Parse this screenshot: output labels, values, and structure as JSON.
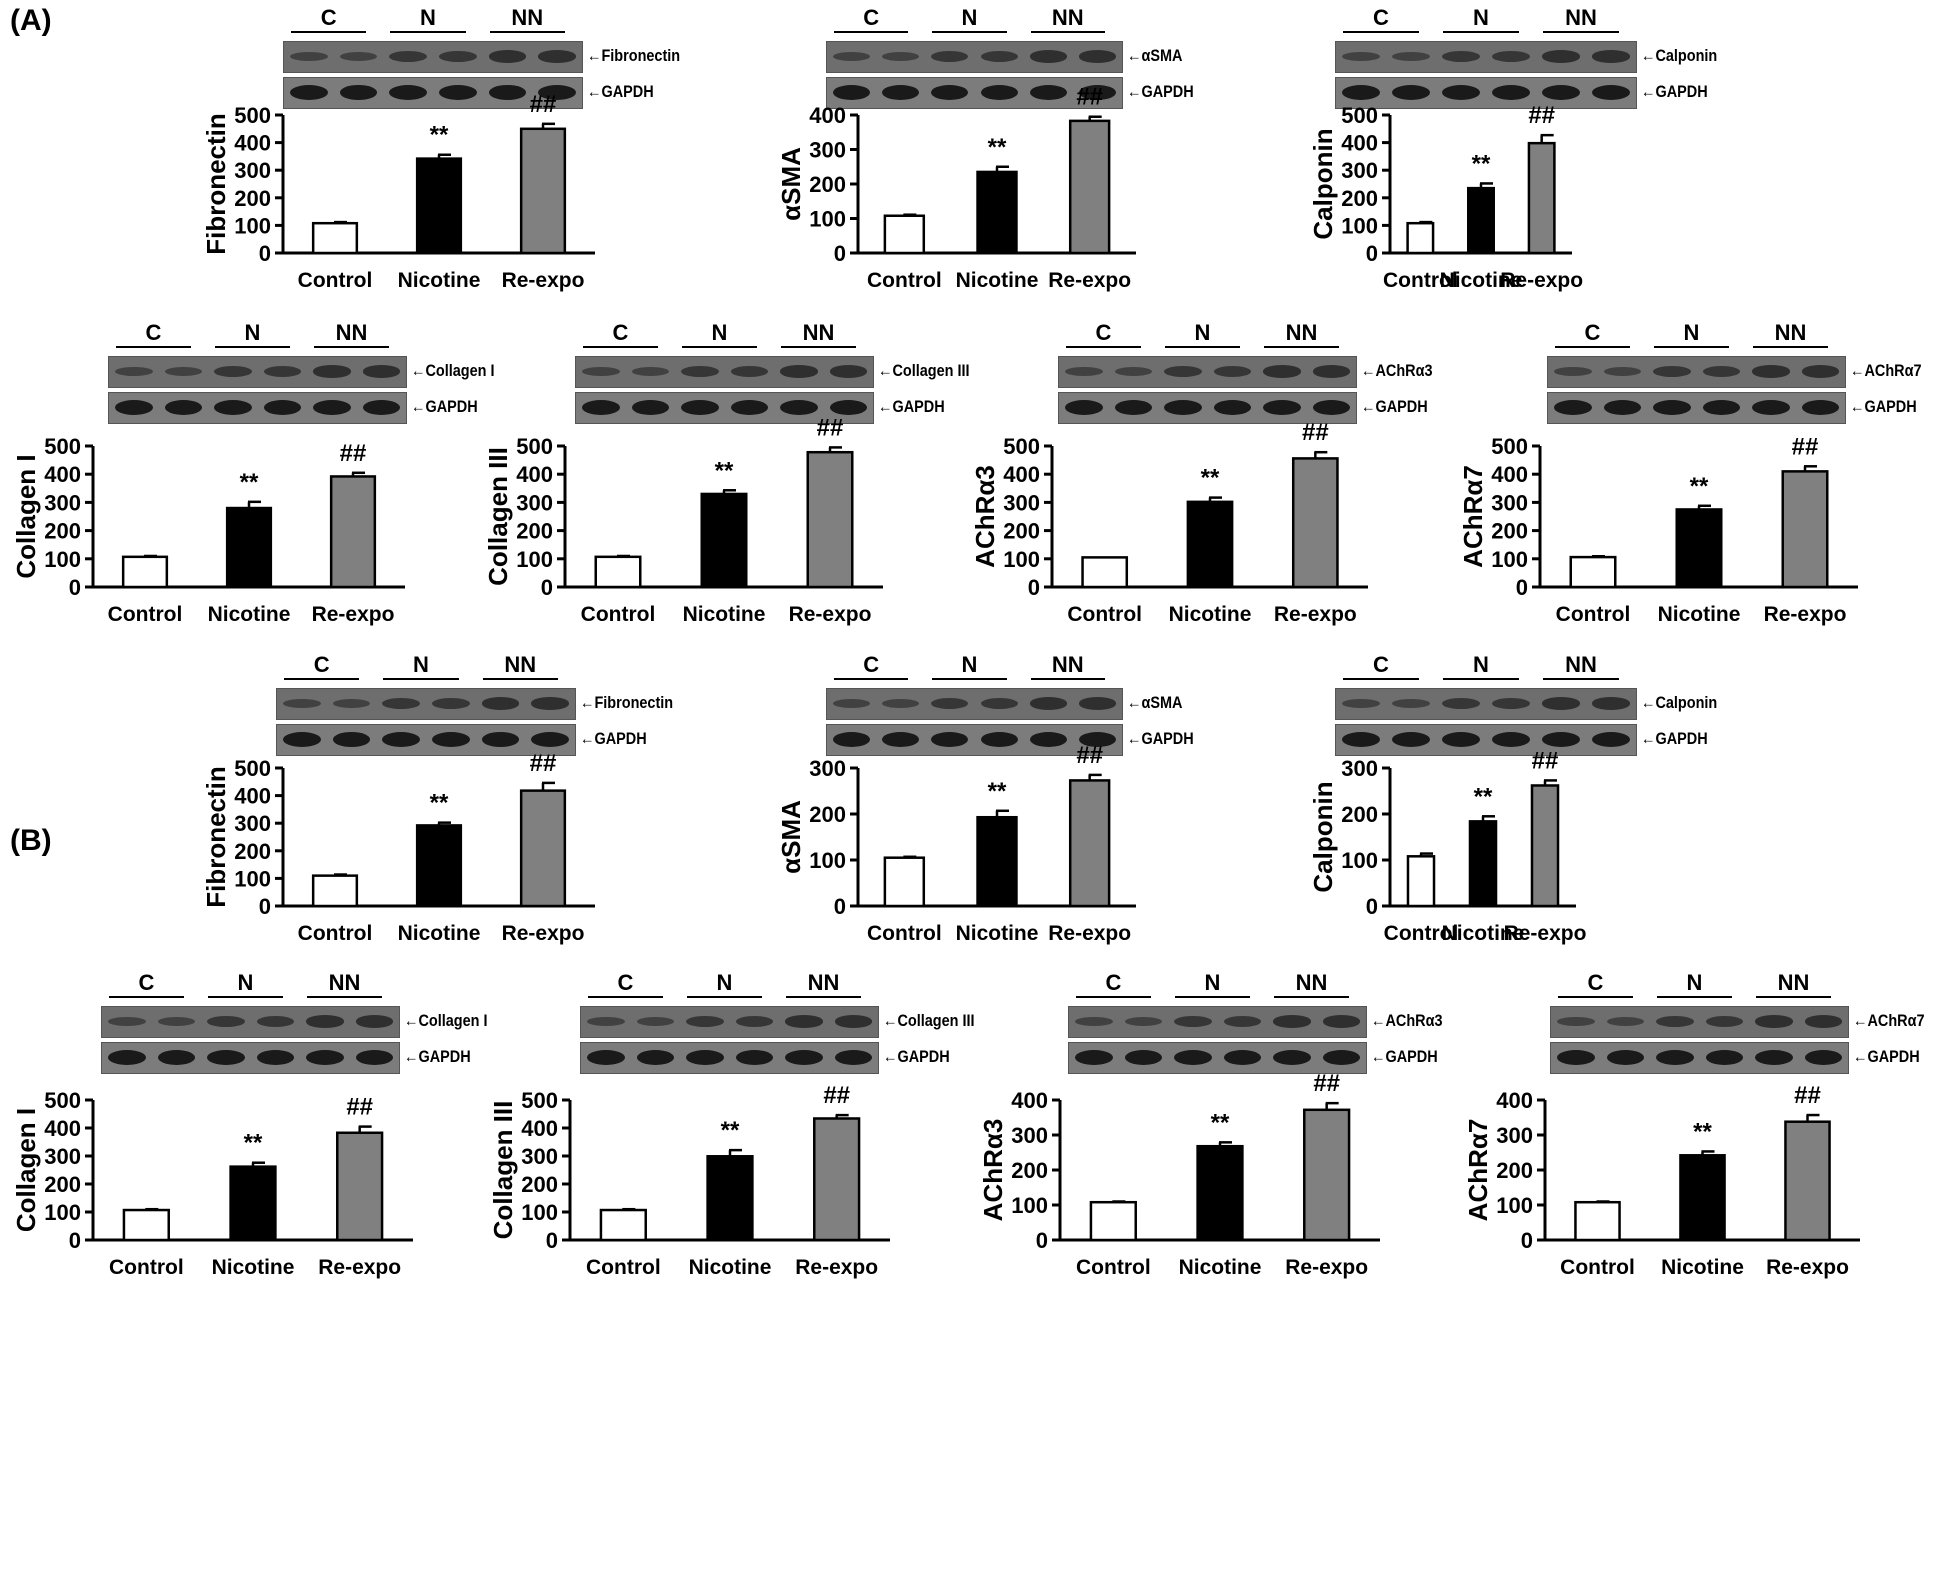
{
  "figure": {
    "sections": [
      {
        "label": "(A)"
      },
      {
        "label": "(B)"
      }
    ],
    "blot_groups": [
      "C",
      "N",
      "NN"
    ],
    "loading_control": "GAPDH",
    "categories": [
      "Control",
      "Nicotine",
      "Re-expo"
    ],
    "bar_colors": {
      "Control": "#ffffff",
      "Nicotine": "#000000",
      "Re-expo": "#808080"
    },
    "significance": {
      "Nicotine": "**",
      "Re-expo": "##"
    }
  },
  "chart_data": [
    {
      "id": "A-fibronectin",
      "section": "(A)",
      "type": "bar",
      "title": "",
      "protein": "Fibronectin",
      "ylabel": "Fibronectin",
      "xlabel": "",
      "categories": [
        "Control",
        "Nicotine",
        "Re-expo"
      ],
      "values": [
        108,
        342,
        450
      ],
      "errors": [
        4,
        14,
        18
      ],
      "annotations": [
        "",
        "**",
        "##"
      ],
      "ylim": [
        0,
        500
      ],
      "yticks": [
        0,
        100,
        200,
        300,
        400,
        500
      ],
      "grid": false,
      "legend": "none"
    },
    {
      "id": "A-asma",
      "section": "(A)",
      "type": "bar",
      "title": "",
      "protein": "αSMA",
      "ylabel": "αSMA",
      "xlabel": "",
      "categories": [
        "Control",
        "Nicotine",
        "Re-expo"
      ],
      "values": [
        108,
        235,
        383
      ],
      "errors": [
        3,
        15,
        12
      ],
      "annotations": [
        "",
        "**",
        "##"
      ],
      "ylim": [
        0,
        400
      ],
      "yticks": [
        0,
        100,
        200,
        300,
        400
      ],
      "grid": false,
      "legend": "none"
    },
    {
      "id": "A-calponin",
      "section": "(A)",
      "type": "bar",
      "title": "",
      "protein": "Calponin",
      "ylabel": "Calponin",
      "xlabel": "",
      "categories": [
        "Control",
        "Nicotine",
        "Re-expo"
      ],
      "values": [
        108,
        235,
        398
      ],
      "errors": [
        4,
        17,
        29
      ],
      "annotations": [
        "",
        "**",
        "##"
      ],
      "ylim": [
        0,
        500
      ],
      "yticks": [
        0,
        100,
        200,
        300,
        400,
        500
      ],
      "grid": false,
      "legend": "none"
    },
    {
      "id": "A-collagen1",
      "section": "(A)",
      "type": "bar",
      "title": "",
      "protein": "Collagen I",
      "ylabel": "Collagen I",
      "xlabel": "",
      "categories": [
        "Control",
        "Nicotine",
        "Re-expo"
      ],
      "values": [
        107,
        280,
        392
      ],
      "errors": [
        3,
        22,
        13
      ],
      "annotations": [
        "",
        "**",
        "##"
      ],
      "ylim": [
        0,
        500
      ],
      "yticks": [
        0,
        100,
        200,
        300,
        400,
        500
      ],
      "grid": false,
      "legend": "none"
    },
    {
      "id": "A-collagen3",
      "section": "(A)",
      "type": "bar",
      "title": "",
      "protein": "Collagen III",
      "ylabel": "Collagen III",
      "xlabel": "",
      "categories": [
        "Control",
        "Nicotine",
        "Re-expo"
      ],
      "values": [
        107,
        330,
        478
      ],
      "errors": [
        3,
        13,
        17
      ],
      "annotations": [
        "",
        "**",
        "##"
      ],
      "ylim": [
        0,
        500
      ],
      "yticks": [
        0,
        100,
        200,
        300,
        400,
        500
      ],
      "grid": false,
      "legend": "none"
    },
    {
      "id": "A-achra3",
      "section": "(A)",
      "type": "bar",
      "title": "",
      "protein": "AChRα3",
      "ylabel": "AChRα3",
      "xlabel": "",
      "categories": [
        "Control",
        "Nicotine",
        "Re-expo"
      ],
      "values": [
        105,
        302,
        456
      ],
      "errors": [
        0,
        15,
        22
      ],
      "annotations": [
        "",
        "**",
        "##"
      ],
      "ylim": [
        0,
        500
      ],
      "yticks": [
        0,
        100,
        200,
        300,
        400,
        500
      ],
      "grid": false,
      "legend": "none"
    },
    {
      "id": "A-achra7",
      "section": "(A)",
      "type": "bar",
      "title": "",
      "protein": "AChRα7",
      "ylabel": "AChRα7",
      "xlabel": "",
      "categories": [
        "Control",
        "Nicotine",
        "Re-expo"
      ],
      "values": [
        106,
        275,
        410
      ],
      "errors": [
        3,
        13,
        18
      ],
      "annotations": [
        "",
        "**",
        "##"
      ],
      "ylim": [
        0,
        500
      ],
      "yticks": [
        0,
        100,
        200,
        300,
        400,
        500
      ],
      "grid": false,
      "legend": "none"
    },
    {
      "id": "B-fibronectin",
      "section": "(B)",
      "type": "bar",
      "title": "",
      "protein": "Fibronectin",
      "ylabel": "Fibronectin",
      "xlabel": "",
      "categories": [
        "Control",
        "Nicotine",
        "Re-expo"
      ],
      "values": [
        110,
        292,
        418
      ],
      "errors": [
        4,
        10,
        28
      ],
      "annotations": [
        "",
        "**",
        "##"
      ],
      "ylim": [
        0,
        500
      ],
      "yticks": [
        0,
        100,
        200,
        300,
        400,
        500
      ],
      "grid": false,
      "legend": "none"
    },
    {
      "id": "B-asma",
      "section": "(B)",
      "type": "bar",
      "title": "",
      "protein": "αSMA",
      "ylabel": "αSMA",
      "xlabel": "",
      "categories": [
        "Control",
        "Nicotine",
        "Re-expo"
      ],
      "values": [
        105,
        193,
        273
      ],
      "errors": [
        2,
        14,
        12
      ],
      "annotations": [
        "",
        "**",
        "##"
      ],
      "ylim": [
        0,
        300
      ],
      "yticks": [
        0,
        100,
        200,
        300
      ],
      "grid": false,
      "legend": "none"
    },
    {
      "id": "B-calponin",
      "section": "(B)",
      "type": "bar",
      "title": "",
      "protein": "Calponin",
      "ylabel": "Calponin",
      "xlabel": "",
      "categories": [
        "Control",
        "Nicotine",
        "Re-expo"
      ],
      "values": [
        108,
        184,
        262
      ],
      "errors": [
        6,
        11,
        11
      ],
      "annotations": [
        "",
        "**",
        "##"
      ],
      "ylim": [
        0,
        300
      ],
      "yticks": [
        0,
        100,
        200,
        300
      ],
      "grid": false,
      "legend": "none"
    },
    {
      "id": "B-collagen1",
      "section": "(B)",
      "type": "bar",
      "title": "",
      "protein": "Collagen I",
      "ylabel": "Collagen I",
      "xlabel": "",
      "categories": [
        "Control",
        "Nicotine",
        "Re-expo"
      ],
      "values": [
        107,
        262,
        383
      ],
      "errors": [
        3,
        14,
        22
      ],
      "annotations": [
        "",
        "**",
        "##"
      ],
      "ylim": [
        0,
        500
      ],
      "yticks": [
        0,
        100,
        200,
        300,
        400,
        500
      ],
      "grid": false,
      "legend": "none"
    },
    {
      "id": "B-collagen3",
      "section": "(B)",
      "type": "bar",
      "title": "",
      "protein": "Collagen III",
      "ylabel": "Collagen III",
      "xlabel": "",
      "categories": [
        "Control",
        "Nicotine",
        "Re-expo"
      ],
      "values": [
        107,
        299,
        434
      ],
      "errors": [
        3,
        22,
        12
      ],
      "annotations": [
        "",
        "**",
        "##"
      ],
      "ylim": [
        0,
        500
      ],
      "yticks": [
        0,
        100,
        200,
        300,
        400,
        500
      ],
      "grid": false,
      "legend": "none"
    },
    {
      "id": "B-achra3",
      "section": "(B)",
      "type": "bar",
      "title": "",
      "protein": "AChRα3",
      "ylabel": "AChRα3",
      "xlabel": "",
      "categories": [
        "Control",
        "Nicotine",
        "Re-expo"
      ],
      "values": [
        108,
        268,
        372
      ],
      "errors": [
        2,
        11,
        19
      ],
      "annotations": [
        "",
        "**",
        "##"
      ],
      "ylim": [
        0,
        400
      ],
      "yticks": [
        0,
        100,
        200,
        300,
        400
      ],
      "grid": false,
      "legend": "none"
    },
    {
      "id": "B-achra7",
      "section": "(B)",
      "type": "bar",
      "title": "",
      "protein": "AChRα7",
      "ylabel": "AChRα7",
      "xlabel": "",
      "categories": [
        "Control",
        "Nicotine",
        "Re-expo"
      ],
      "values": [
        108,
        242,
        338
      ],
      "errors": [
        2,
        11,
        19
      ],
      "annotations": [
        "",
        "**",
        "##"
      ],
      "ylim": [
        0,
        400
      ],
      "yticks": [
        0,
        100,
        200,
        300,
        400
      ],
      "grid": false,
      "legend": "none"
    }
  ]
}
